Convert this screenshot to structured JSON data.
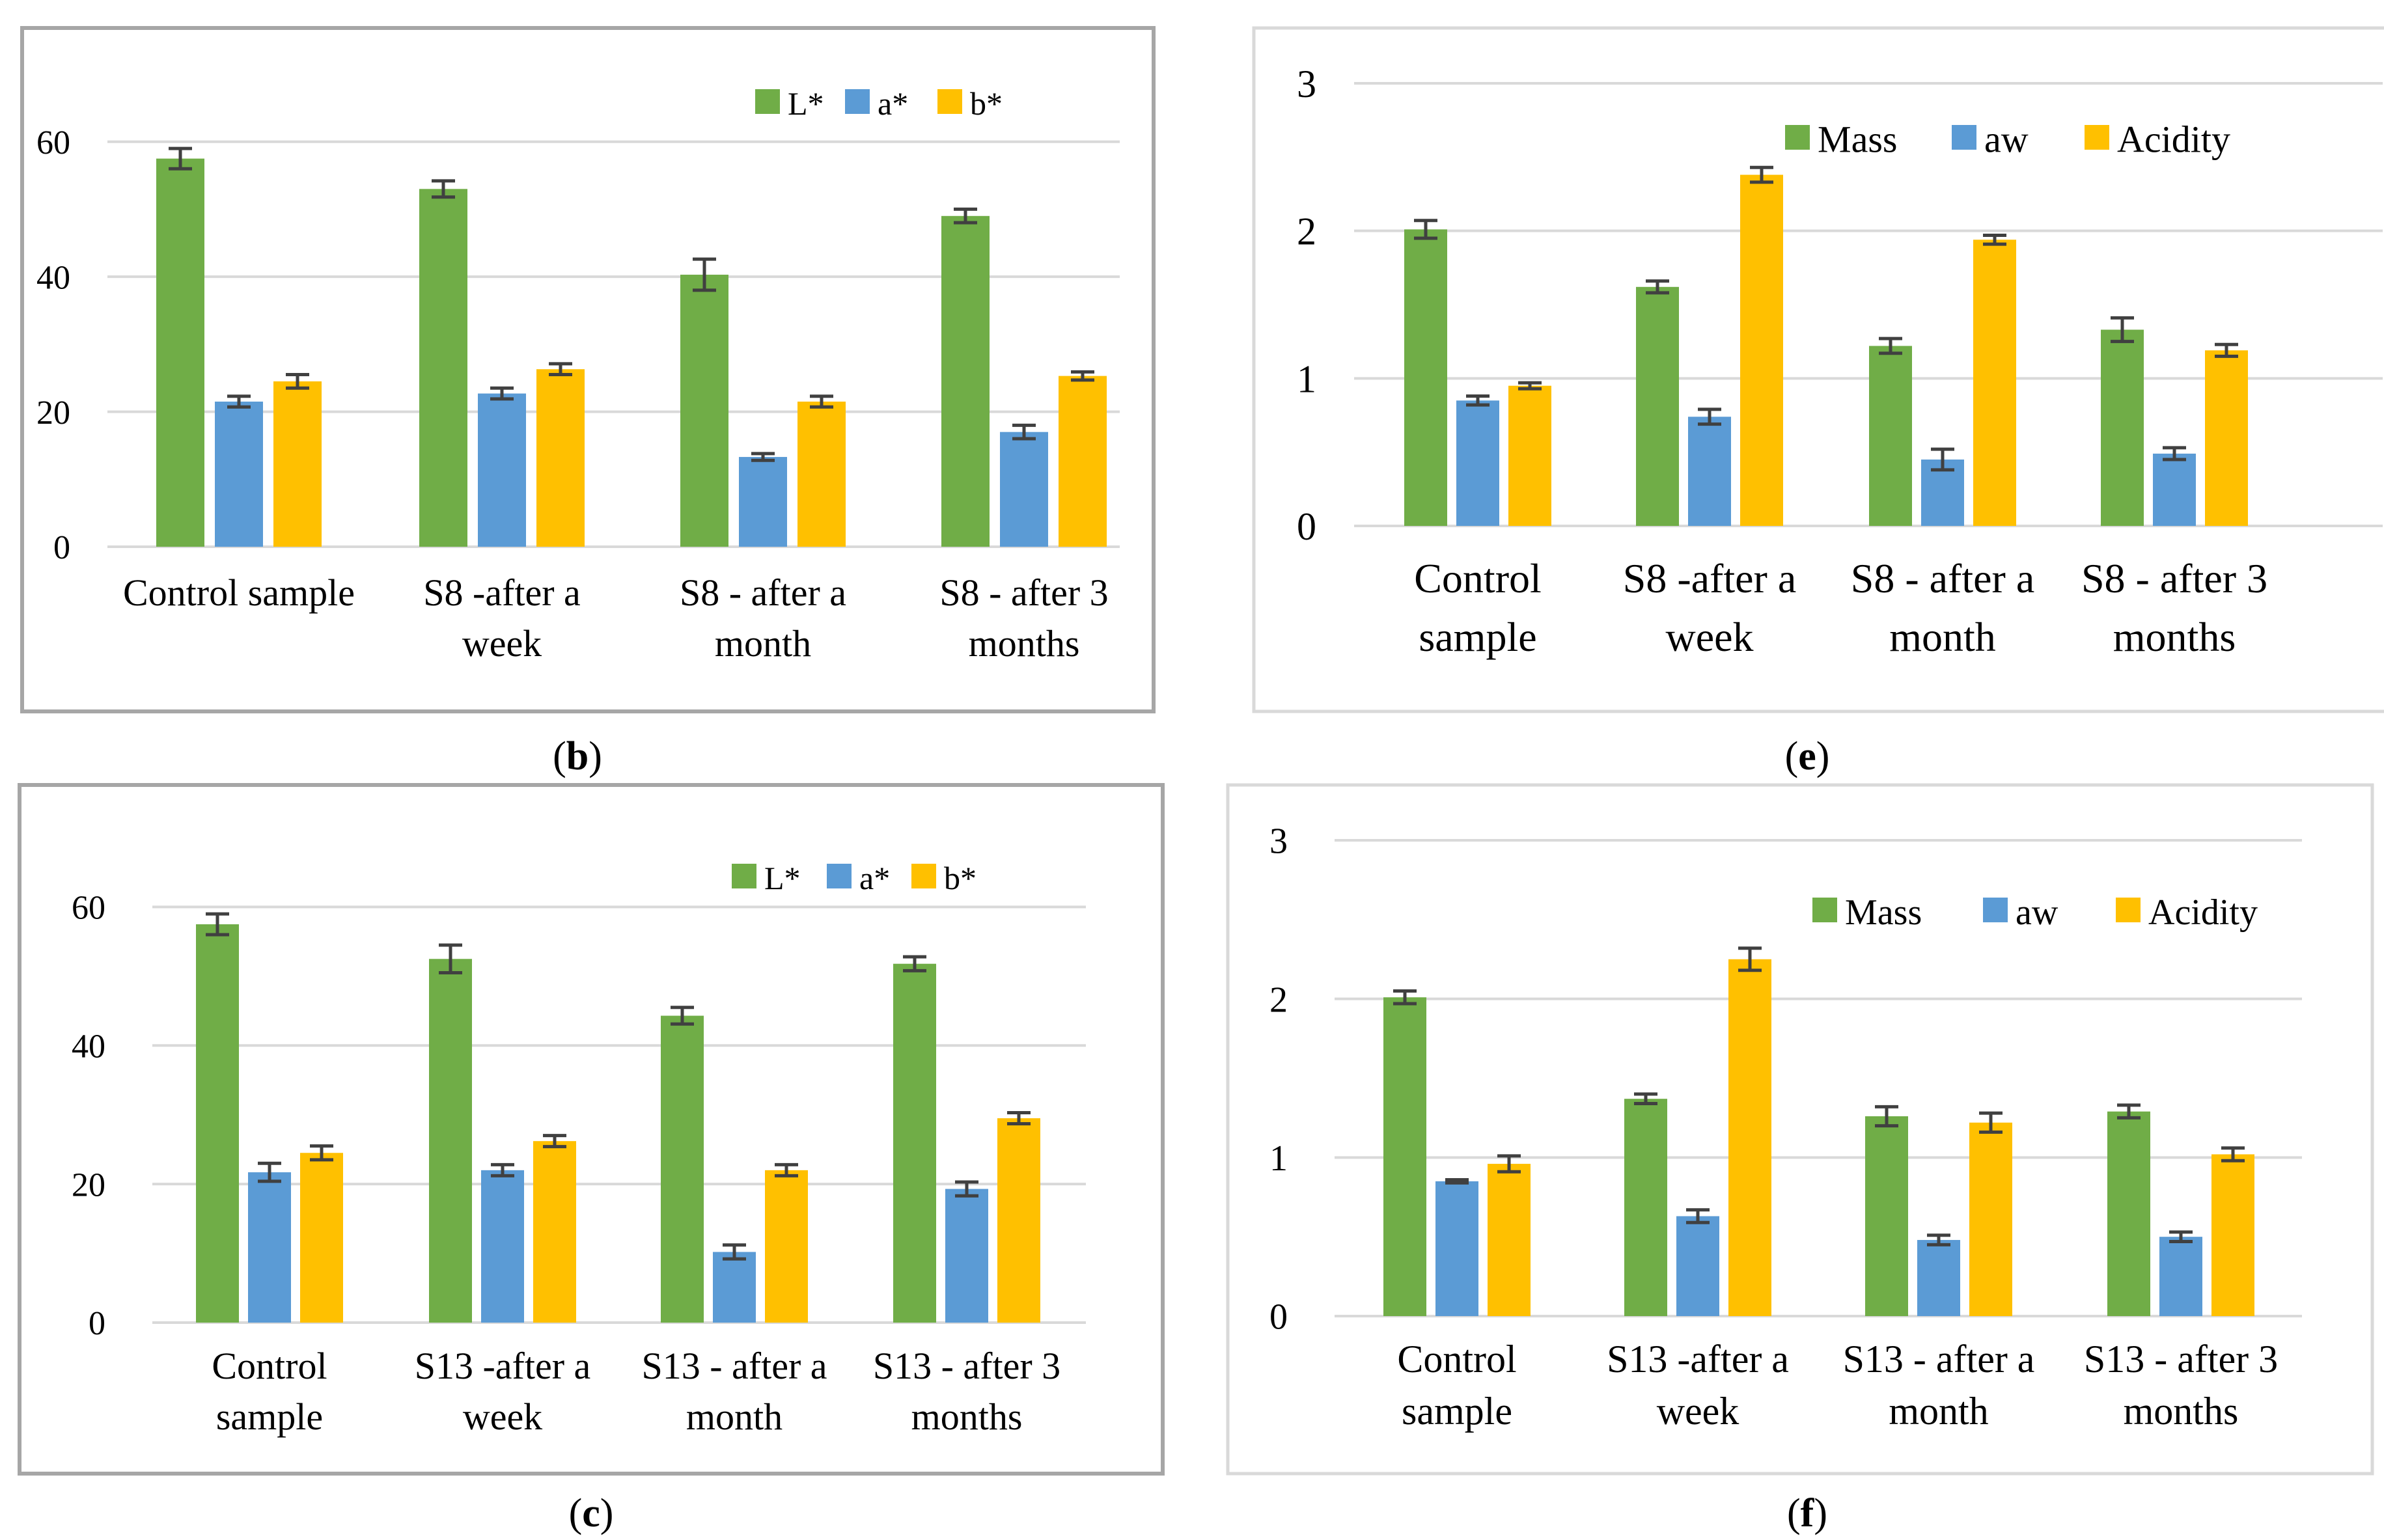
{
  "colors": {
    "l_star": "#70AD47",
    "a_star": "#5B9BD5",
    "b_star": "#FFC000",
    "mass": "#70AD47",
    "aw": "#5B9BD5",
    "acidity": "#FFC000",
    "gridline": "#D9D9D9",
    "error_bar": "#404040",
    "axis_text": "#000000",
    "frame_dark": "#A6A6A6",
    "frame_light": "#D9D9D9"
  },
  "chart_data": [
    {
      "panel": "b",
      "type": "bar",
      "categories": [
        [
          "Control sample"
        ],
        [
          "S8 -after a",
          "week"
        ],
        [
          "S8 - after a",
          "month"
        ],
        [
          "S8 - after 3",
          "months"
        ]
      ],
      "series": [
        {
          "name": "L*",
          "values": [
            57.5,
            53,
            40.3,
            49
          ],
          "errors": [
            1.5,
            1.2,
            2.3,
            1.0
          ]
        },
        {
          "name": "a*",
          "values": [
            21.5,
            22.7,
            13.3,
            17
          ],
          "errors": [
            0.8,
            0.8,
            0.5,
            1.0
          ]
        },
        {
          "name": "b*",
          "values": [
            24.5,
            26.3,
            21.5,
            25.3
          ],
          "errors": [
            1.0,
            0.8,
            0.8,
            0.6
          ]
        }
      ],
      "ylim": [
        0,
        70
      ],
      "yticks": [
        "0",
        "20",
        "40",
        "60"
      ],
      "title": "",
      "xlabel": "",
      "ylabel": "",
      "legend": "top-right",
      "grid": true,
      "caption": "b"
    },
    {
      "panel": "e",
      "type": "bar",
      "categories": [
        [
          "Control",
          "sample"
        ],
        [
          "S8 -after a",
          "week"
        ],
        [
          "S8 - after a",
          "month"
        ],
        [
          "S8 - after 3",
          "months"
        ]
      ],
      "series": [
        {
          "name": "Mass",
          "values": [
            2.01,
            1.62,
            1.22,
            1.33
          ],
          "errors": [
            0.06,
            0.04,
            0.05,
            0.08
          ]
        },
        {
          "name": "aw",
          "values": [
            0.85,
            0.74,
            0.45,
            0.49
          ],
          "errors": [
            0.03,
            0.05,
            0.07,
            0.04
          ]
        },
        {
          "name": "Acidity",
          "values": [
            0.95,
            2.38,
            1.94,
            1.19
          ],
          "errors": [
            0.02,
            0.05,
            0.03,
            0.04
          ]
        }
      ],
      "ylim": [
        0,
        3
      ],
      "yticks": [
        "0",
        "1",
        "2",
        "3"
      ],
      "title": "",
      "xlabel": "",
      "ylabel": "",
      "legend": "top-right",
      "grid": true,
      "caption": "e"
    },
    {
      "panel": "c",
      "type": "bar",
      "categories": [
        [
          "Control",
          "sample"
        ],
        [
          "S13 -after a",
          "week"
        ],
        [
          "S13 - after a",
          "month"
        ],
        [
          "S13 - after 3",
          "months"
        ]
      ],
      "series": [
        {
          "name": "L*",
          "values": [
            57.5,
            52.5,
            44.3,
            51.8
          ],
          "errors": [
            1.5,
            2.0,
            1.2,
            1.0
          ]
        },
        {
          "name": "a*",
          "values": [
            21.7,
            22,
            10.2,
            19.3
          ],
          "errors": [
            1.3,
            0.8,
            1.0,
            1.0
          ]
        },
        {
          "name": "b*",
          "values": [
            24.5,
            26.2,
            22,
            29.5
          ],
          "errors": [
            1.0,
            0.8,
            0.8,
            0.8
          ]
        }
      ],
      "ylim": [
        0,
        70
      ],
      "yticks": [
        "0",
        "20",
        "40",
        "60"
      ],
      "title": "",
      "xlabel": "",
      "ylabel": "",
      "legend": "top-right",
      "grid": true,
      "caption": "c"
    },
    {
      "panel": "f",
      "type": "bar",
      "categories": [
        [
          "Control",
          "sample"
        ],
        [
          "S13 -after a",
          "week"
        ],
        [
          "S13 - after a",
          "month"
        ],
        [
          "S13 - after 3",
          "months"
        ]
      ],
      "series": [
        {
          "name": "Mass",
          "values": [
            2.01,
            1.37,
            1.26,
            1.29
          ],
          "errors": [
            0.04,
            0.03,
            0.06,
            0.04
          ]
        },
        {
          "name": "aw",
          "values": [
            0.85,
            0.63,
            0.48,
            0.5
          ],
          "errors": [
            0.01,
            0.04,
            0.03,
            0.03
          ]
        },
        {
          "name": "Acidity",
          "values": [
            0.96,
            2.25,
            1.22,
            1.02
          ],
          "errors": [
            0.05,
            0.07,
            0.06,
            0.04
          ]
        }
      ],
      "ylim": [
        0,
        3
      ],
      "yticks": [
        "0",
        "1",
        "2",
        "3"
      ],
      "title": "",
      "xlabel": "",
      "ylabel": "",
      "legend": "top-right",
      "grid": true,
      "caption": "f"
    }
  ]
}
